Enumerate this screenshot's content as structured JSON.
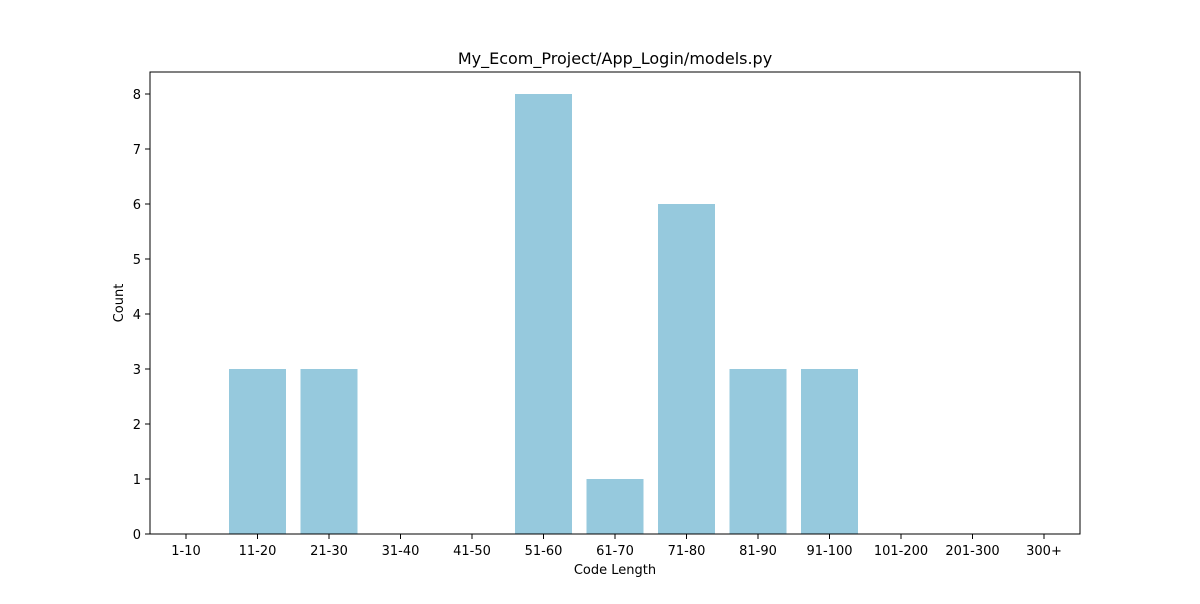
{
  "chart_data": {
    "type": "bar",
    "title": "My_Ecom_Project/App_Login/models.py",
    "xlabel": "Code Length",
    "ylabel": "Count",
    "categories": [
      "1-10",
      "11-20",
      "21-30",
      "31-40",
      "41-50",
      "51-60",
      "61-70",
      "71-80",
      "81-90",
      "91-100",
      "101-200",
      "201-300",
      "300+"
    ],
    "values": [
      0,
      3,
      3,
      0,
      0,
      8,
      1,
      6,
      3,
      3,
      0,
      0,
      0
    ],
    "ylim": [
      0,
      8.4
    ],
    "yticks": [
      "0",
      "1",
      "2",
      "3",
      "4",
      "5",
      "6",
      "7",
      "8"
    ],
    "bar_color": "#96c9dd",
    "grid": false,
    "legend": "none"
  }
}
